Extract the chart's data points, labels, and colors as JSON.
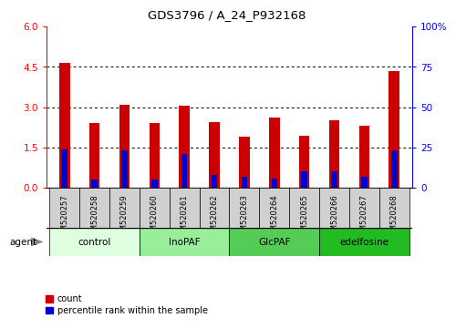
{
  "title": "GDS3796 / A_24_P932168",
  "samples": [
    "GSM520257",
    "GSM520258",
    "GSM520259",
    "GSM520260",
    "GSM520261",
    "GSM520262",
    "GSM520263",
    "GSM520264",
    "GSM520265",
    "GSM520266",
    "GSM520267",
    "GSM520268"
  ],
  "count_values": [
    4.65,
    2.4,
    3.1,
    2.4,
    3.05,
    2.45,
    1.9,
    2.6,
    1.95,
    2.5,
    2.3,
    4.35
  ],
  "percentile_values": [
    24,
    5,
    23,
    5,
    21,
    8,
    7,
    6,
    10,
    10,
    7,
    23
  ],
  "groups": [
    {
      "label": "control",
      "start": 0,
      "end": 3,
      "color": "#e0ffe0"
    },
    {
      "label": "InoPAF",
      "start": 3,
      "end": 6,
      "color": "#99ee99"
    },
    {
      "label": "GlcPAF",
      "start": 6,
      "end": 9,
      "color": "#55cc55"
    },
    {
      "label": "edelfosine",
      "start": 9,
      "end": 12,
      "color": "#22bb22"
    }
  ],
  "ylim_left": [
    0,
    6
  ],
  "ylim_right": [
    0,
    100
  ],
  "yticks_left": [
    0,
    1.5,
    3.0,
    4.5,
    6
  ],
  "yticks_right": [
    0,
    25,
    50,
    75,
    100
  ],
  "bar_color_red": "#cc0000",
  "bar_color_blue": "#0000cc",
  "bar_width": 0.35,
  "blue_bar_width": 0.2,
  "grid_color": "black",
  "tick_bg_color": "#d0d0d0",
  "agent_label": "agent",
  "legend_count": "count",
  "legend_pct": "percentile rank within the sample"
}
